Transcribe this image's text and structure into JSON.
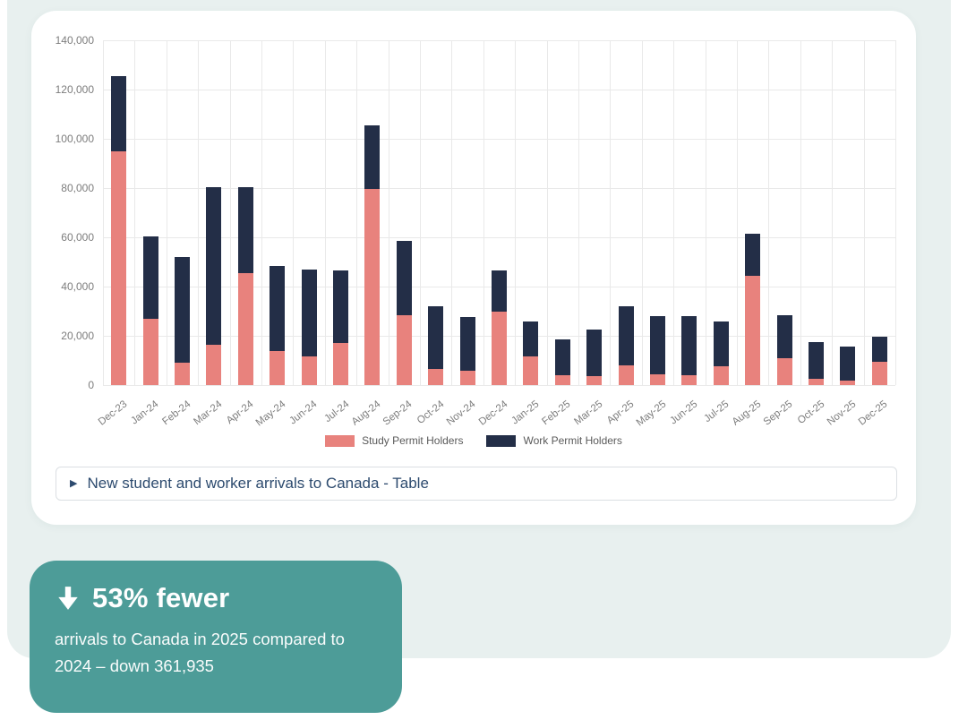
{
  "colors": {
    "page_bg": "#ffffff",
    "panel_bg": "#e8f0ef",
    "card_bg": "#ffffff",
    "grid": "#e9e9e9",
    "axis_text": "#7d7d7d",
    "legend_text": "#5a5a5a",
    "toggle_text": "#2c4a6e",
    "toggle_border": "#dbdfe3",
    "callout_bg": "#4d9c98",
    "callout_text": "#ffffff"
  },
  "chart_data": {
    "type": "bar",
    "stacked": true,
    "title": "",
    "xlabel": "",
    "ylabel": "",
    "ylim": [
      0,
      140000
    ],
    "ytick_step": 20000,
    "grid": "horizontal-and-vertical",
    "legend_position": "bottom",
    "x_label_rotation": -38,
    "categories": [
      "Dec-23",
      "Jan-24",
      "Feb-24",
      "Mar-24",
      "Apr-24",
      "May-24",
      "Jun-24",
      "Jul-24",
      "Aug-24",
      "Sep-24",
      "Oct-24",
      "Nov-24",
      "Dec-24",
      "Jan-25",
      "Feb-25",
      "Mar-25",
      "Apr-25",
      "May-25",
      "Jun-25",
      "Jul-25",
      "Aug-25",
      "Sep-25",
      "Oct-25",
      "Nov-25",
      "Dec-25"
    ],
    "series": [
      {
        "name": "Study Permit Holders",
        "color": "#e8827d",
        "values": [
          95000,
          27000,
          9000,
          16500,
          45500,
          14000,
          11500,
          17000,
          79500,
          28500,
          6500,
          6000,
          30000,
          11500,
          4000,
          3500,
          8000,
          4500,
          4000,
          7500,
          44500,
          11000,
          2500,
          2000,
          9500
        ]
      },
      {
        "name": "Work Permit Holders",
        "color": "#232e47",
        "values": [
          30500,
          33500,
          43000,
          64000,
          35000,
          34500,
          35500,
          29500,
          26000,
          30000,
          25500,
          21500,
          16500,
          14500,
          14500,
          19000,
          24000,
          23500,
          24000,
          18500,
          17000,
          17500,
          15000,
          13500,
          10000
        ]
      }
    ]
  },
  "table_toggle": {
    "icon": "▶",
    "label": "New student and worker arrivals to Canada - Table"
  },
  "callout": {
    "headline": "53% fewer",
    "body_lines": [
      "arrivals to Canada in 2025 compared to",
      "2024 – down 361,935"
    ]
  }
}
